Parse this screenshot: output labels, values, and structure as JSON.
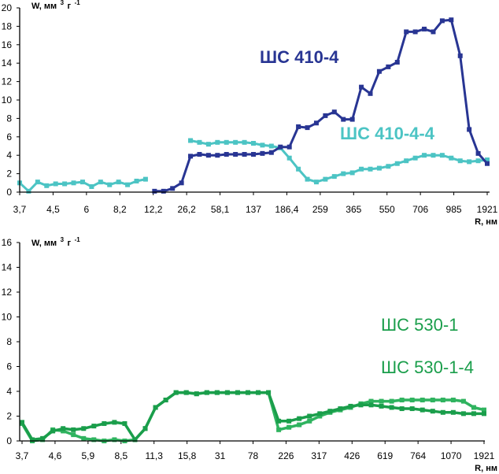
{
  "chart_data": [
    {
      "type": "line",
      "ylabel_prefix": "W, мм",
      "ylabel_sup": "3",
      "ylabel_unit": "г",
      "ylabel_sup2": "-1",
      "xlabel": "R, нм",
      "ylim": [
        0,
        20
      ],
      "yticks": [
        "0",
        "2",
        "4",
        "6",
        "8",
        "10",
        "12",
        "14",
        "16",
        "18",
        "20"
      ],
      "xtick_labels": [
        "3,7",
        "4,5",
        "6",
        "8,2",
        "12,2",
        "26,2",
        "58,1",
        "137",
        "186,4",
        "259",
        "365",
        "550",
        "706",
        "985",
        "1921"
      ],
      "series": [
        {
          "name": "ШС 410-4",
          "color": "#283593",
          "values": [
            null,
            null,
            null,
            null,
            null,
            null,
            null,
            null,
            null,
            null,
            null,
            null,
            null,
            null,
            null,
            0.1,
            0.1,
            0.4,
            1.0,
            3.9,
            4.1,
            4.0,
            4.0,
            4.1,
            4.1,
            4.1,
            4.1,
            4.2,
            4.3,
            4.9,
            4.9,
            7.1,
            7.0,
            7.5,
            8.3,
            8.7,
            7.9,
            7.9,
            11.4,
            10.7,
            13.1,
            13.6,
            14.1,
            17.4,
            17.4,
            17.7,
            17.4,
            18.6,
            18.7,
            14.8,
            6.8,
            4.2,
            3.1
          ]
        },
        {
          "name": "ШС 410-4-4",
          "color": "#4cc4c4",
          "values": [
            1.0,
            0.1,
            1.1,
            0.7,
            0.9,
            0.9,
            1.0,
            1.1,
            0.6,
            1.1,
            0.8,
            1.1,
            0.8,
            1.2,
            1.4,
            null,
            null,
            null,
            null,
            5.6,
            5.4,
            5.2,
            5.4,
            5.4,
            5.4,
            5.4,
            5.3,
            5.1,
            5.0,
            4.8,
            3.7,
            2.5,
            1.4,
            1.1,
            1.4,
            1.7,
            2.0,
            2.1,
            2.5,
            2.5,
            2.6,
            2.8,
            3.1,
            3.4,
            3.7,
            4.0,
            4.0,
            4.0,
            3.7,
            3.4,
            3.3,
            3.4,
            3.5
          ]
        }
      ]
    },
    {
      "type": "line",
      "ylabel_prefix": "W, мм",
      "ylabel_sup": "3",
      "ylabel_unit": "г",
      "ylabel_sup2": "-1",
      "xlabel": "R, нм",
      "ylim": [
        0,
        16
      ],
      "yticks": [
        "0",
        "2",
        "4",
        "6",
        "8",
        "10",
        "12",
        "14",
        "16"
      ],
      "xtick_labels": [
        "3,7",
        "4,6",
        "5,9",
        "8,5",
        "11,3",
        "15,8",
        "31",
        "78",
        "226",
        "317",
        "426",
        "619",
        "764",
        "1070",
        "1921"
      ],
      "series": [
        {
          "name": "ШС 530-1",
          "color": "#1a9e4b",
          "values": [
            1.5,
            0.1,
            0.2,
            0.8,
            1.0,
            0.9,
            1.0,
            1.2,
            1.4,
            1.5,
            1.4,
            0.1,
            1.0,
            2.7,
            3.3,
            3.9,
            3.9,
            3.8,
            3.9,
            3.9,
            3.9,
            3.9,
            3.9,
            3.9,
            3.9,
            1.6,
            1.6,
            1.8,
            2.0,
            2.2,
            2.4,
            2.6,
            2.8,
            2.9,
            2.9,
            2.8,
            2.7,
            2.6,
            2.6,
            2.5,
            2.4,
            2.3,
            2.3,
            2.2,
            2.2,
            2.2
          ]
        },
        {
          "name": "ШС 530-1-4",
          "color": "#2fb35f",
          "values": [
            1.4,
            0.0,
            0.1,
            0.9,
            0.8,
            0.5,
            0.2,
            0.1,
            0.0,
            0.1,
            0.0,
            0.1,
            1.0,
            2.7,
            3.3,
            3.9,
            3.9,
            3.8,
            3.9,
            3.9,
            3.9,
            3.9,
            3.9,
            3.9,
            3.9,
            0.9,
            1.1,
            1.3,
            1.6,
            2.0,
            2.3,
            2.5,
            2.7,
            3.0,
            3.2,
            3.2,
            3.2,
            3.3,
            3.3,
            3.3,
            3.3,
            3.3,
            3.3,
            3.2,
            2.7,
            2.5
          ]
        }
      ]
    }
  ]
}
